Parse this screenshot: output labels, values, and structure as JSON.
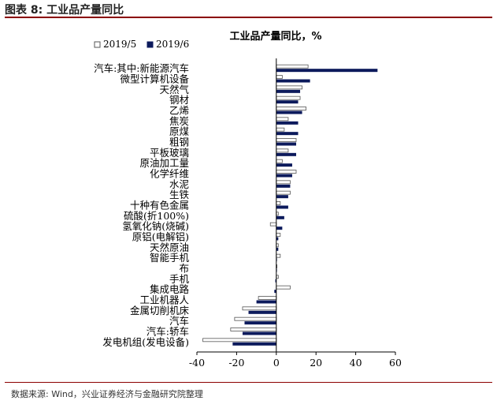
{
  "figure_title": "图表 8:  工业品产量同比",
  "source": "数据来源:  Wind，兴业证券经济与金融研究院整理",
  "colors": {
    "series_2019_5": "#ffffff",
    "series_2019_6": "#0c1a5c",
    "bar_stroke": "#555555",
    "rule": "#8b0000"
  },
  "chart_data": {
    "type": "bar",
    "orientation": "horizontal",
    "title": "工业品产量同比，%",
    "legend": "top-left",
    "xlim": [
      -40,
      60
    ],
    "xticks": [
      -40,
      -20,
      0,
      20,
      40,
      60
    ],
    "grid": false,
    "categories": [
      "汽车:其中:新能源汽车",
      "微型计算机设备",
      "天然气",
      "钢材",
      "乙烯",
      "焦炭",
      "原煤",
      "粗钢",
      "平板玻璃",
      "原油加工量",
      "化学纤维",
      "水泥",
      "生铁",
      "十种有色金属",
      "硫酸(折100%)",
      "氢氧化钠(烧碱)",
      "原铝(电解铝)",
      "天然原油",
      "智能手机",
      "布",
      "手机",
      "集成电路",
      "工业机器人",
      "金属切削机床",
      "汽车",
      "汽车:轿车",
      "发电机组(发电设备)"
    ],
    "series": [
      {
        "name": "2019/5",
        "values": [
          16,
          3,
          13,
          12,
          15,
          6,
          4,
          10,
          6,
          3,
          10,
          7,
          7,
          2,
          1,
          -3,
          2,
          1,
          2,
          0.3,
          1,
          7,
          -9,
          -17,
          -21,
          -23,
          -37
        ]
      },
      {
        "name": "2019/6",
        "values": [
          51,
          17,
          12,
          11,
          13,
          11,
          11,
          10,
          10,
          8,
          8,
          7,
          6,
          6,
          4,
          3,
          1,
          1,
          0.3,
          0,
          -0.5,
          -1,
          -10,
          -14,
          -16,
          -17,
          -22
        ]
      }
    ]
  }
}
